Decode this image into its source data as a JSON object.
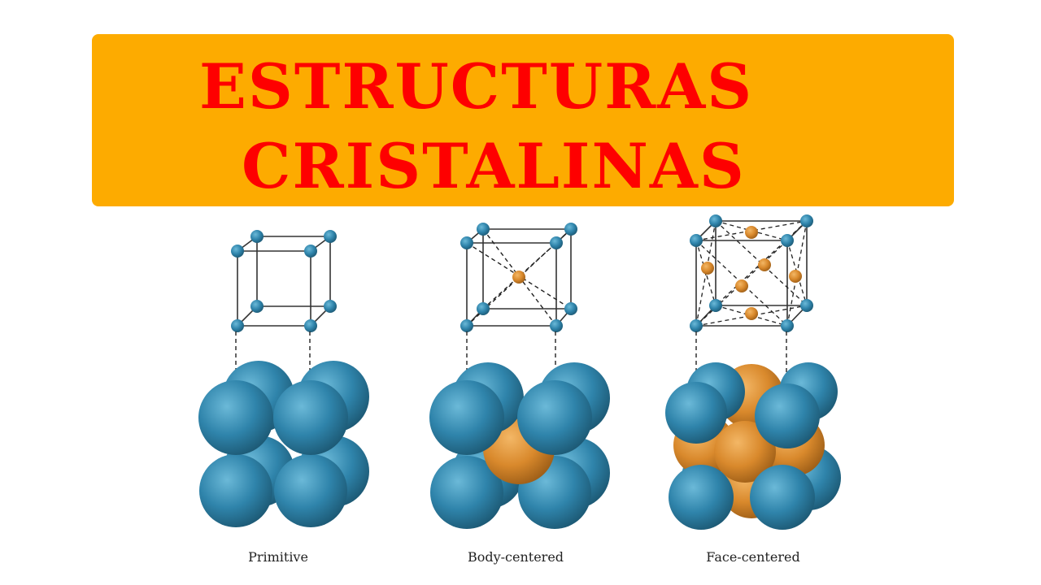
{
  "title": {
    "line1": "ESTRUCTURAS",
    "line2": "CRISTALINAS"
  },
  "colors": {
    "banner": "#fdab00",
    "title": "#fe0000",
    "atom_blue": "#2f7fa3",
    "atom_orange": "#d9892c"
  },
  "structures": [
    {
      "label": "Primitive"
    },
    {
      "label": "Body-centered"
    },
    {
      "label": "Face-centered"
    }
  ]
}
